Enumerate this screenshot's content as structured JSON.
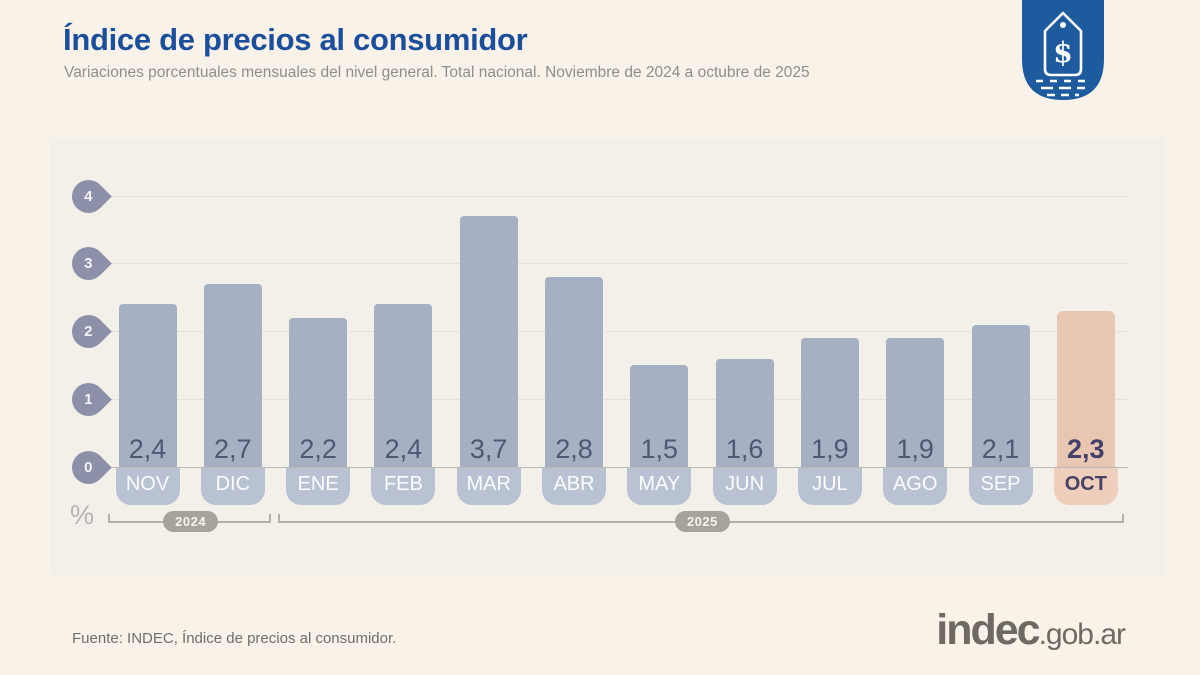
{
  "header": {
    "title": "Índice de precios al consumidor",
    "subtitle": "Variaciones porcentuales mensuales del nivel general. Total nacional. Noviembre de 2024 a octubre de 2025"
  },
  "icon": {
    "semantic": "price-tag-badge-icon",
    "currency_symbol": "$",
    "color": "#1d5a9e"
  },
  "chart_data": {
    "type": "bar",
    "categories": [
      "NOV",
      "DIC",
      "ENE",
      "FEB",
      "MAR",
      "ABR",
      "MAY",
      "JUN",
      "JUL",
      "AGO",
      "SEP",
      "OCT"
    ],
    "values": [
      2.4,
      2.7,
      2.2,
      2.4,
      3.7,
      2.8,
      1.5,
      1.6,
      1.9,
      1.9,
      2.1,
      2.3
    ],
    "value_labels": [
      "2,4",
      "2,7",
      "2,2",
      "2,4",
      "3,7",
      "2,8",
      "1,5",
      "1,6",
      "1,9",
      "1,9",
      "2,1",
      "2,3"
    ],
    "highlight_index": 11,
    "yticks": [
      "0",
      "1",
      "2",
      "3",
      "4"
    ],
    "ylim": [
      0,
      4
    ],
    "ylabel": "%",
    "grid": true,
    "year_groups": [
      {
        "label": "2024",
        "start": 0,
        "end": 1
      },
      {
        "label": "2025",
        "start": 2,
        "end": 11
      }
    ],
    "colors": {
      "bar": "#a6b0c3",
      "bar_highlight": "#e8c7b2",
      "tab": "#b8c2d3",
      "tab_highlight": "#edcfbc",
      "tick_marker": "#8d90a9",
      "gridline": "#e4e1da"
    }
  },
  "footer": {
    "source": "Fuente: INDEC, Índice de precios al consumidor.",
    "logo_main": "indec",
    "logo_suffix": ".gob.ar"
  }
}
